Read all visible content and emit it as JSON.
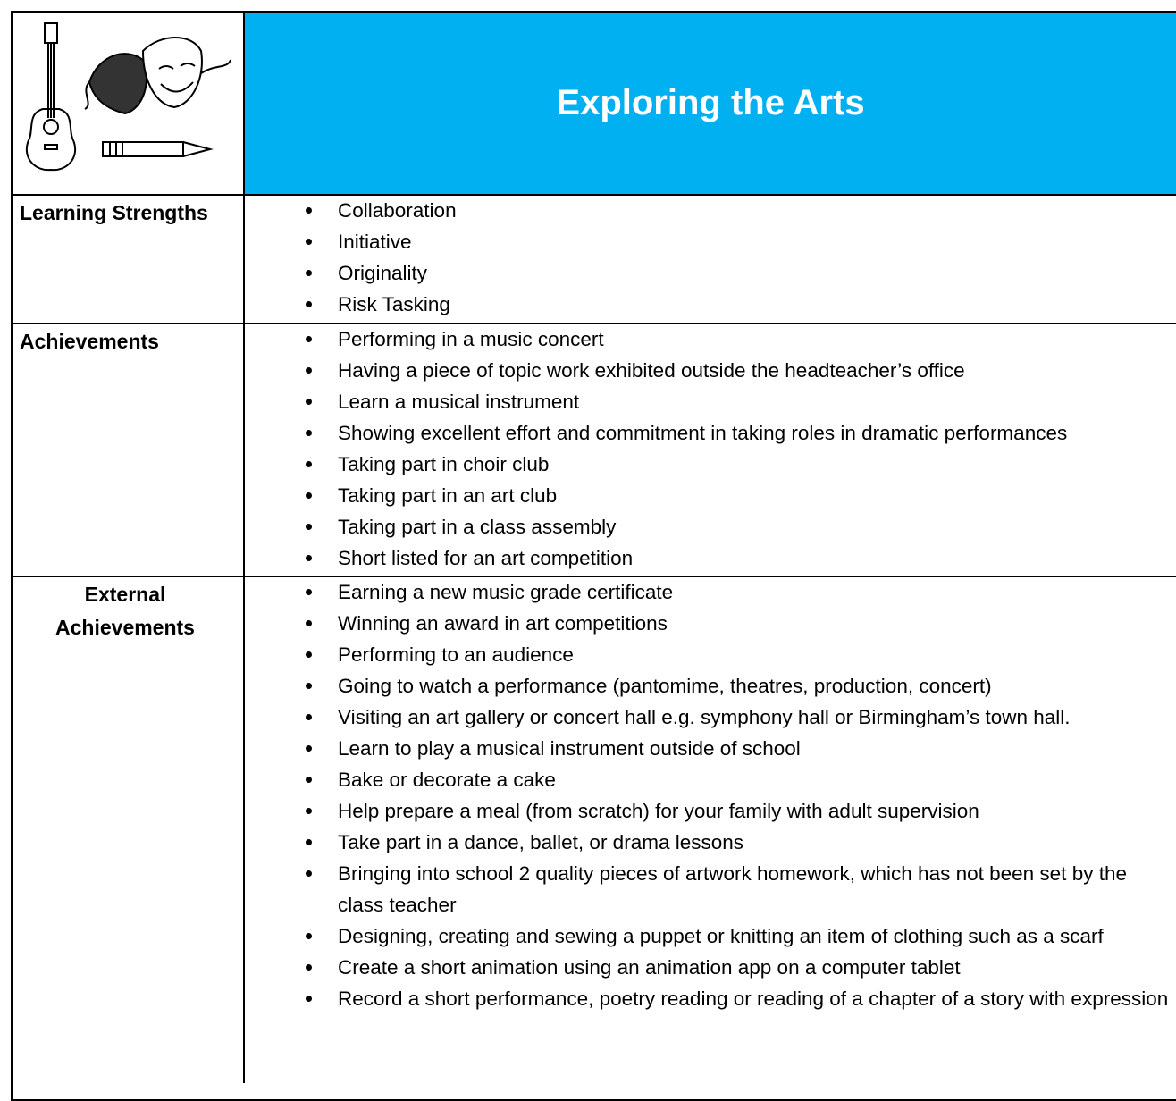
{
  "header": {
    "title": "Exploring the Arts"
  },
  "table": {
    "rows": [
      {
        "label": "Learning Strengths",
        "items": [
          "Collaboration",
          "Initiative",
          "Originality",
          "Risk Tasking"
        ]
      },
      {
        "label": "Achievements",
        "items": [
          "Performing in a music concert",
          "Having a piece of topic work exhibited outside the headteacher’s office",
          "Learn a musical instrument",
          "Showing excellent effort and commitment in taking roles in dramatic performances",
          "Taking part in choir club",
          "Taking part in an art club",
          "Taking part in a class assembly",
          "Short listed for an art competition"
        ]
      },
      {
        "label": "External Achievements",
        "items": [
          "Earning a new music grade certificate",
          "Winning an award in art competitions",
          "Performing to an audience",
          "Going to watch a performance (pantomime, theatres, production, concert)",
          "Visiting an art gallery or concert hall e.g. symphony hall or Birmingham’s town hall.",
          "Learn to play a musical instrument outside of school",
          "Bake or decorate a cake",
          "Help prepare a meal (from scratch) for your family with adult supervision",
          "Take part in a dance, ballet, or drama lessons",
          "Bringing into school 2 quality pieces of artwork homework, which has not been set by the class teacher",
          "Designing, creating and sewing a puppet or knitting an item of clothing such as a scarf",
          "Create a short animation using an animation app on a computer tablet",
          "Record a short performance, poetry reading or reading of a chapter of a story with expression"
        ]
      }
    ]
  }
}
